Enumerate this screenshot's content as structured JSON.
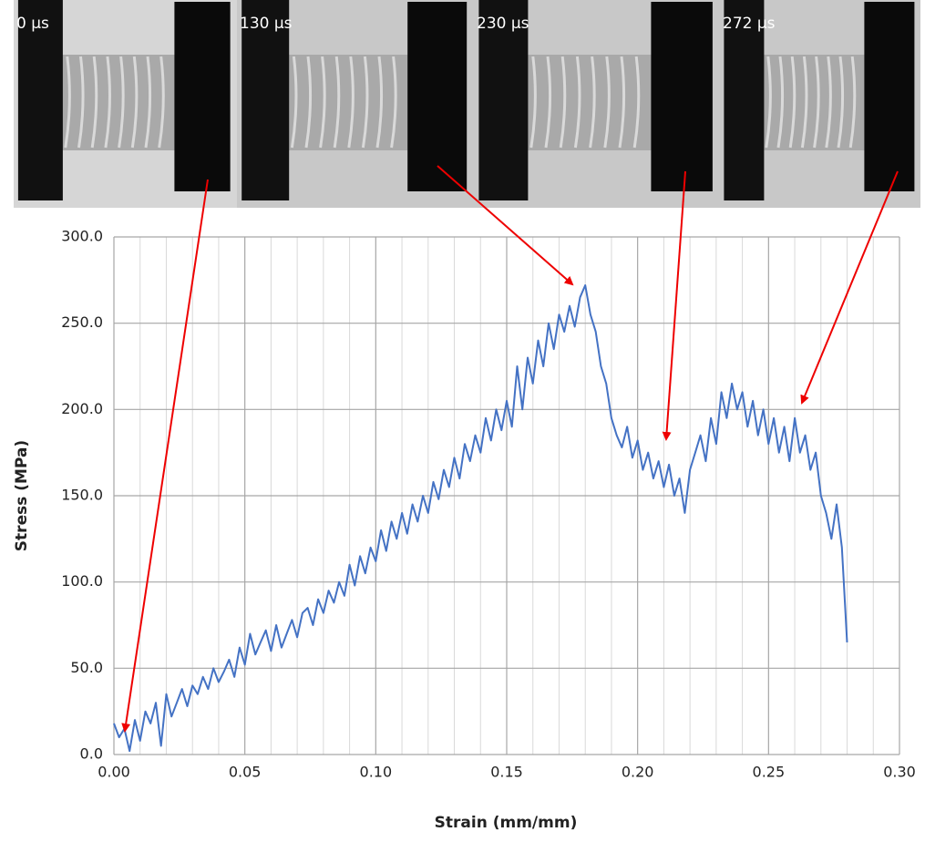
{
  "chart_data": {
    "type": "line",
    "frame_labels": [
      "0 µs",
      "130 µs",
      "230 µs",
      "272 µs"
    ],
    "x_label": "Strain (mm/mm)",
    "y_label": "Stress (MPa)",
    "xlim": [
      0,
      0.3
    ],
    "ylim": [
      0,
      300
    ],
    "xticks": [
      {
        "value": 0,
        "label": "0.00"
      },
      {
        "value": 0.05,
        "label": "0.05"
      },
      {
        "value": 0.1,
        "label": "0.10"
      },
      {
        "value": 0.15,
        "label": "0.15"
      },
      {
        "value": 0.2,
        "label": "0.20"
      },
      {
        "value": 0.25,
        "label": "0.25"
      },
      {
        "value": 0.3,
        "label": "0.30"
      }
    ],
    "x_minor_ticks": [
      0.01,
      0.02,
      0.03,
      0.04,
      0.06,
      0.07,
      0.08,
      0.09,
      0.11,
      0.12,
      0.13,
      0.14,
      0.16,
      0.17,
      0.18,
      0.19,
      0.21,
      0.22,
      0.23,
      0.24,
      0.26,
      0.27,
      0.28,
      0.29
    ],
    "yticks": [
      {
        "value": 0,
        "label": "0.0"
      },
      {
        "value": 50,
        "label": "50.0"
      },
      {
        "value": 100,
        "label": "100.0"
      },
      {
        "value": 150,
        "label": "150.0"
      },
      {
        "value": 200,
        "label": "200.0"
      },
      {
        "value": 250,
        "label": "250.0"
      },
      {
        "value": 300,
        "label": "300.0"
      }
    ],
    "grid": true,
    "color": "#4472c4",
    "x": [
      0,
      0.002,
      0.004,
      0.006,
      0.008,
      0.01,
      0.012,
      0.014,
      0.016,
      0.018,
      0.02,
      0.022,
      0.024,
      0.026,
      0.028,
      0.03,
      0.032,
      0.034,
      0.036,
      0.038,
      0.04,
      0.042,
      0.044,
      0.046,
      0.048,
      0.05,
      0.052,
      0.054,
      0.056,
      0.058,
      0.06,
      0.062,
      0.064,
      0.066,
      0.068,
      0.07,
      0.072,
      0.074,
      0.076,
      0.078,
      0.08,
      0.082,
      0.084,
      0.086,
      0.088,
      0.09,
      0.092,
      0.094,
      0.096,
      0.098,
      0.1,
      0.102,
      0.104,
      0.106,
      0.108,
      0.11,
      0.112,
      0.114,
      0.116,
      0.118,
      0.12,
      0.122,
      0.124,
      0.126,
      0.128,
      0.13,
      0.132,
      0.134,
      0.136,
      0.138,
      0.14,
      0.142,
      0.144,
      0.146,
      0.148,
      0.15,
      0.152,
      0.154,
      0.156,
      0.158,
      0.16,
      0.162,
      0.164,
      0.166,
      0.168,
      0.17,
      0.172,
      0.174,
      0.176,
      0.178,
      0.18,
      0.182,
      0.184,
      0.186,
      0.188,
      0.19,
      0.192,
      0.194,
      0.196,
      0.198,
      0.2,
      0.202,
      0.204,
      0.206,
      0.208,
      0.21,
      0.212,
      0.214,
      0.216,
      0.218,
      0.22,
      0.222,
      0.224,
      0.226,
      0.228,
      0.23,
      0.232,
      0.234,
      0.236,
      0.238,
      0.24,
      0.242,
      0.244,
      0.246,
      0.248,
      0.25,
      0.252,
      0.254,
      0.256,
      0.258,
      0.26,
      0.262,
      0.264,
      0.266,
      0.268,
      0.27,
      0.272,
      0.274,
      0.276,
      0.278,
      0.28
    ],
    "values": [
      18,
      10,
      15,
      2,
      20,
      8,
      25,
      18,
      30,
      5,
      35,
      22,
      30,
      38,
      28,
      40,
      35,
      45,
      38,
      50,
      42,
      48,
      55,
      45,
      62,
      52,
      70,
      58,
      65,
      72,
      60,
      75,
      62,
      70,
      78,
      68,
      82,
      85,
      75,
      90,
      82,
      95,
      88,
      100,
      92,
      110,
      98,
      115,
      105,
      120,
      112,
      130,
      118,
      135,
      125,
      140,
      128,
      145,
      135,
      150,
      140,
      158,
      148,
      165,
      155,
      172,
      160,
      180,
      170,
      185,
      175,
      195,
      182,
      200,
      188,
      205,
      190,
      225,
      200,
      230,
      215,
      240,
      225,
      250,
      235,
      255,
      245,
      260,
      248,
      265,
      272,
      255,
      245,
      225,
      215,
      195,
      185,
      178,
      190,
      172,
      182,
      165,
      175,
      160,
      170,
      155,
      168,
      150,
      160,
      140,
      165,
      175,
      185,
      170,
      195,
      180,
      210,
      195,
      215,
      200,
      210,
      190,
      205,
      185,
      200,
      180,
      195,
      175,
      190,
      170,
      195,
      175,
      185,
      165,
      175,
      150,
      140,
      125,
      145,
      120,
      65
    ]
  }
}
